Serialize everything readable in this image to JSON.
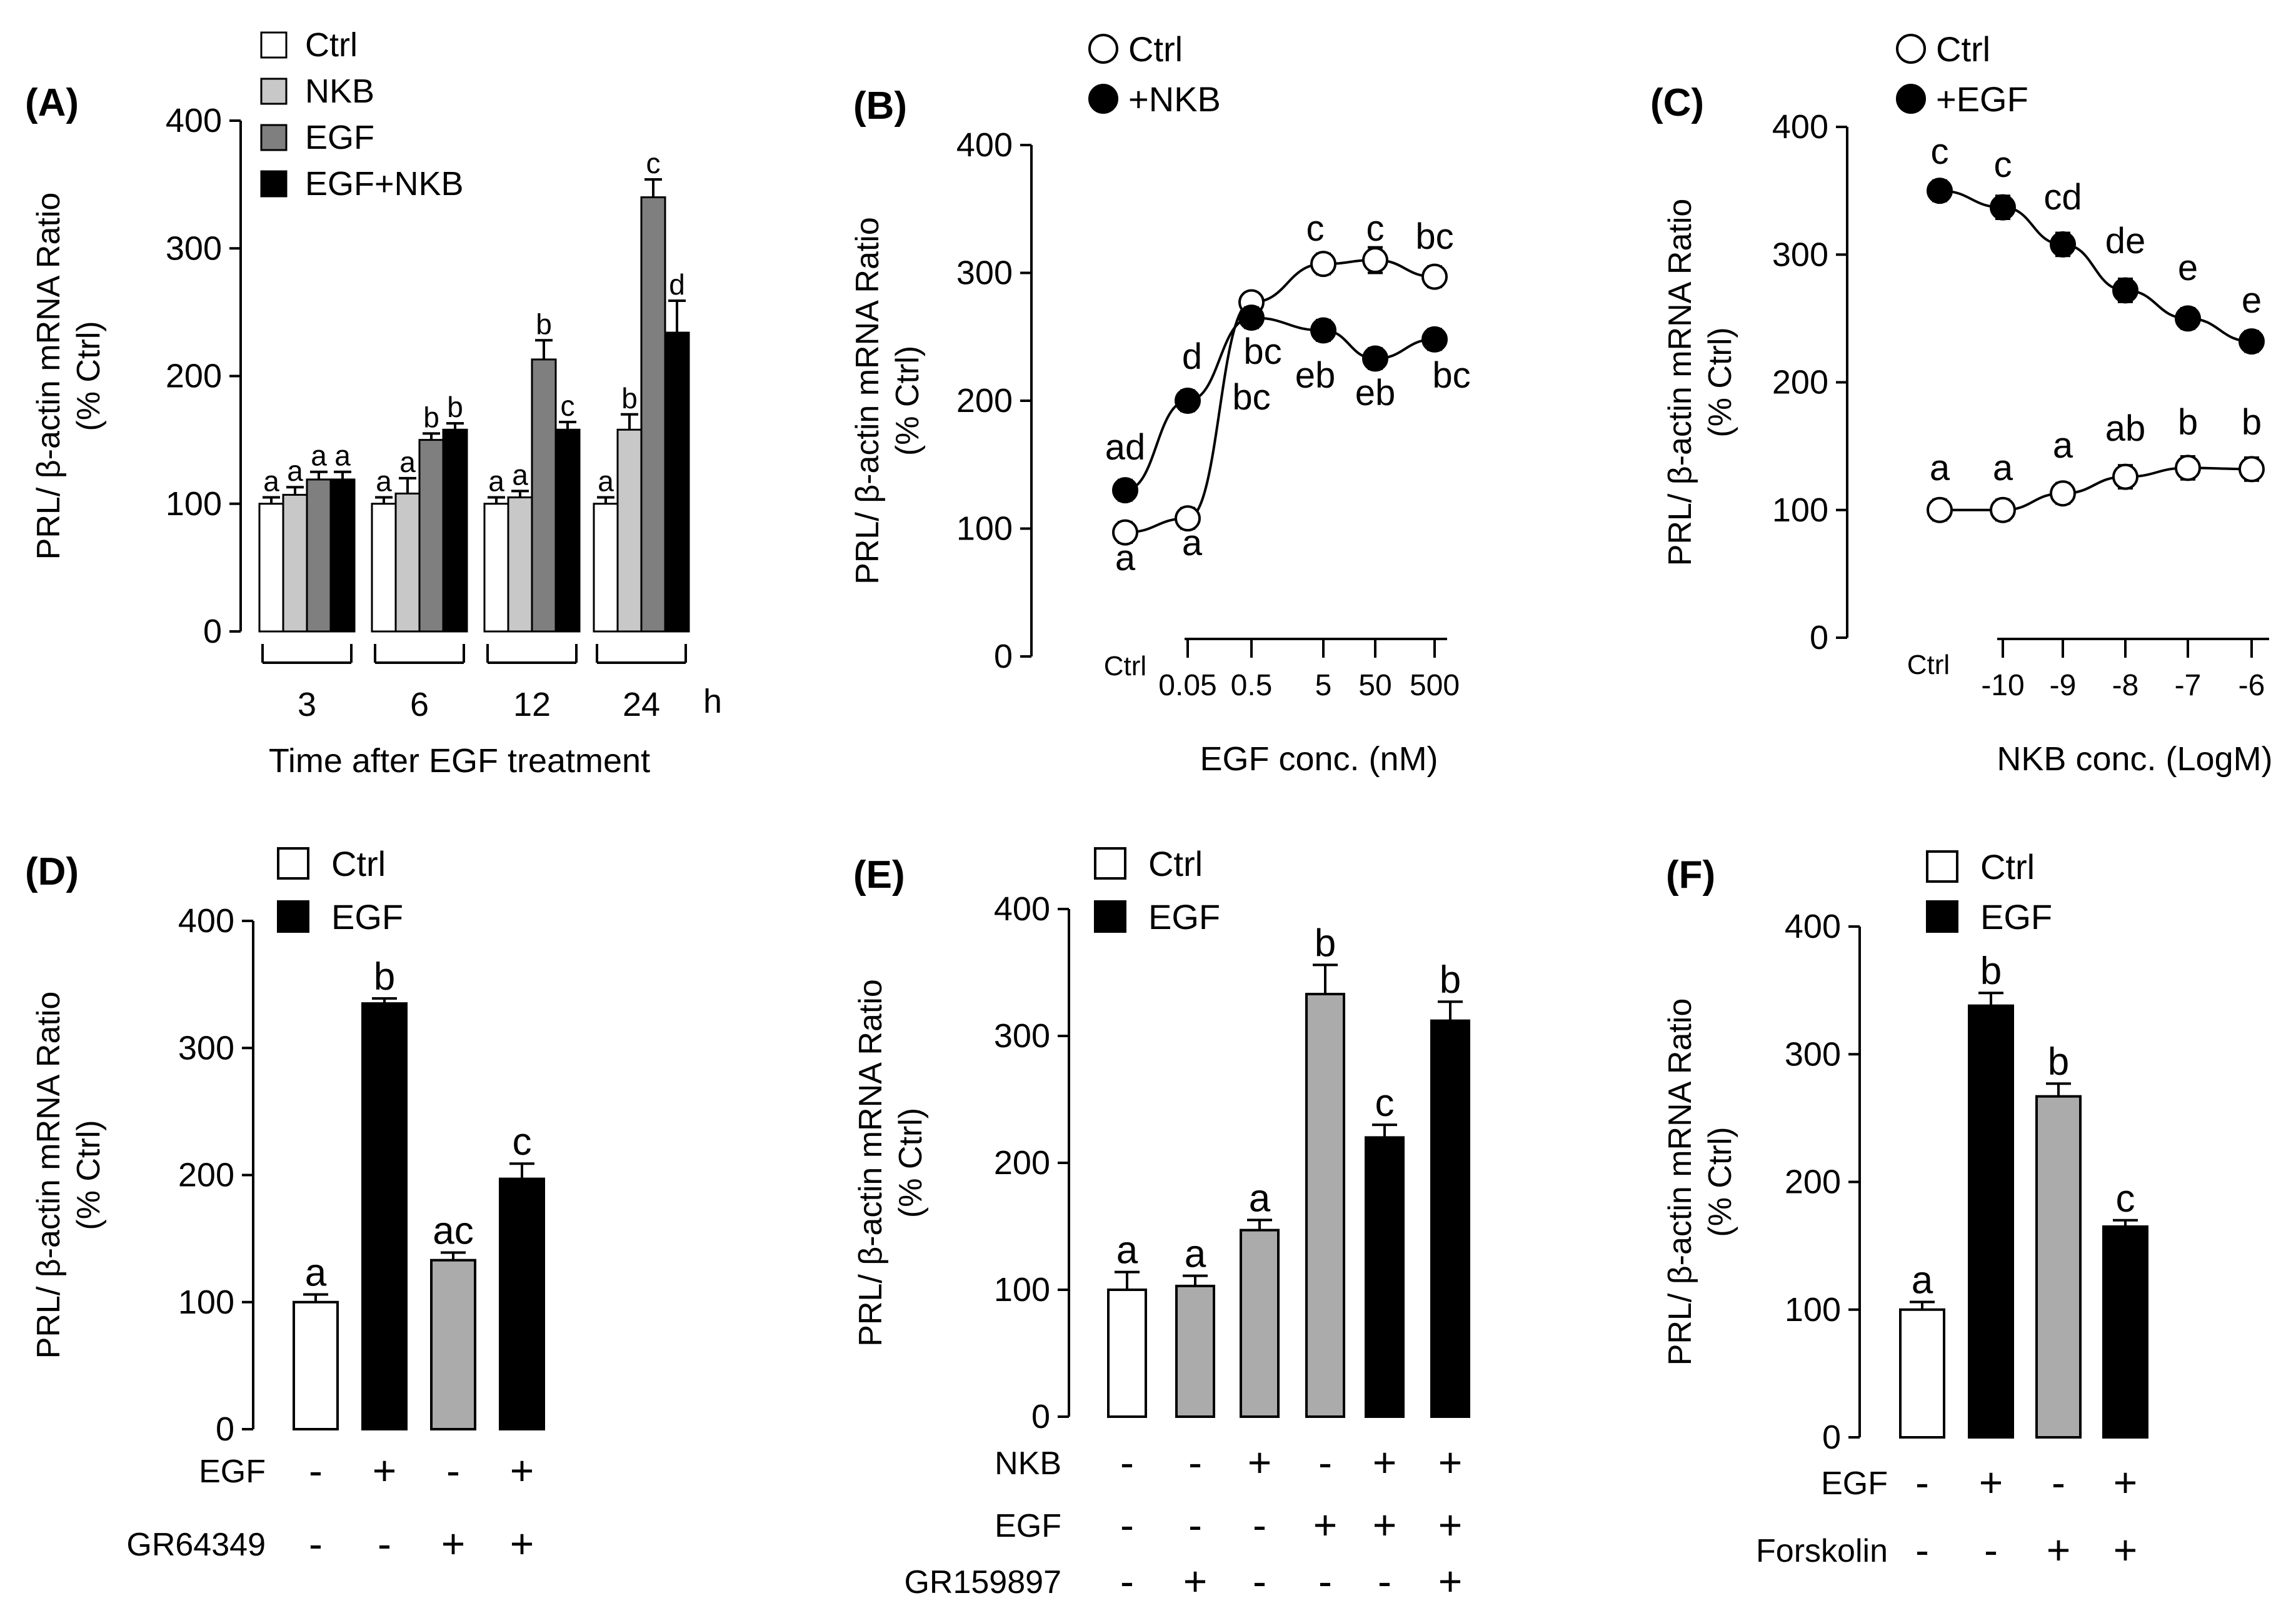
{
  "colors": {
    "ctrl": "#ffffff",
    "nkb": "#c8c8c8",
    "egf": "#7f7f7f",
    "egfnkb": "#000000",
    "gray": "#ababab",
    "black": "#000000"
  },
  "chart_data": [
    {
      "type": "bar",
      "panel": "(A)",
      "ylabel": [
        "PRL/ β-actin mRNA Ratio",
        "(% Ctrl)"
      ],
      "ylim": [
        0,
        400
      ],
      "yticks": [
        "0",
        "100",
        "200",
        "300",
        "400"
      ],
      "xlabel": "Time after EGF treatment",
      "x_unit": "h",
      "categories": [
        "3",
        "6",
        "12",
        "24"
      ],
      "legend": [
        "Ctrl",
        "NKB",
        "EGF",
        "EGF+NKB"
      ],
      "series": [
        {
          "name": "Ctrl",
          "color_key": "ctrl",
          "values": [
            100,
            100,
            100,
            100
          ],
          "errors": [
            5,
            5,
            5,
            5
          ],
          "letters": [
            "a",
            "a",
            "a",
            "a"
          ]
        },
        {
          "name": "NKB",
          "color_key": "nkb",
          "values": [
            107,
            108,
            105,
            158
          ],
          "errors": [
            6,
            12,
            5,
            12
          ],
          "letters": [
            "a",
            "a",
            "a",
            "b"
          ]
        },
        {
          "name": "EGF",
          "color_key": "egf",
          "values": [
            119,
            150,
            213,
            340
          ],
          "errors": [
            6,
            5,
            15,
            14
          ],
          "letters": [
            "a",
            "b",
            "b",
            "c"
          ]
        },
        {
          "name": "EGF+NKB",
          "color_key": "egfnkb",
          "values": [
            119,
            158,
            158,
            234
          ],
          "errors": [
            6,
            5,
            6,
            25
          ],
          "letters": [
            "a",
            "b",
            "c",
            "d"
          ]
        }
      ]
    },
    {
      "type": "line",
      "panel": "(B)",
      "ylabel": [
        "PRL/ β-actin mRNA Ratio",
        "(% Ctrl)"
      ],
      "ylim": [
        0,
        400
      ],
      "yticks": [
        "0",
        "100",
        "200",
        "300",
        "400"
      ],
      "xlabel": "EGF conc. (nM)",
      "x": [
        "Ctrl",
        "0.05",
        "0.5",
        "5",
        "50",
        "500"
      ],
      "legend": [
        "Ctrl",
        "+NKB"
      ],
      "series": [
        {
          "name": "Ctrl",
          "filled": false,
          "values": [
            97,
            108,
            277,
            307,
            310,
            297
          ],
          "errors": [
            8,
            8,
            6,
            8,
            10,
            8
          ],
          "letters": [
            "a",
            "a",
            "bc",
            "c",
            "c",
            "bc"
          ]
        },
        {
          "name": "+NKB",
          "filled": true,
          "values": [
            130,
            200,
            265,
            255,
            233,
            248
          ],
          "errors": [
            8,
            8,
            8,
            8,
            8,
            8
          ],
          "letters": [
            "ad",
            "d",
            "bc",
            "eb",
            "eb",
            "bc"
          ]
        }
      ]
    },
    {
      "type": "line",
      "panel": "(C)",
      "ylabel": [
        "PRL/ β-actin mRNA Ratio",
        "(% Ctrl)"
      ],
      "ylim": [
        0,
        400
      ],
      "yticks": [
        "0",
        "100",
        "200",
        "300",
        "400"
      ],
      "xlabel": "NKB conc. (LogM)",
      "x": [
        "Ctrl",
        "-10",
        "-9",
        "-8",
        "-7",
        "-6"
      ],
      "legend": [
        "Ctrl",
        "+EGF"
      ],
      "series": [
        {
          "name": "Ctrl",
          "filled": false,
          "values": [
            100,
            100,
            113,
            126,
            133,
            132
          ],
          "errors": [
            8,
            8,
            8,
            9,
            9,
            9
          ],
          "letters": [
            "a",
            "a",
            "a",
            "ab",
            "b",
            "b"
          ]
        },
        {
          "name": "+EGF",
          "filled": true,
          "values": [
            350,
            337,
            308,
            272,
            250,
            232
          ],
          "errors": [
            8,
            9,
            9,
            9,
            8,
            8
          ],
          "letters": [
            "c",
            "c",
            "cd",
            "de",
            "e",
            "e"
          ]
        }
      ]
    },
    {
      "type": "bar",
      "panel": "(D)",
      "ylabel": [
        "PRL/ β-actin mRNA Ratio",
        "(% Ctrl)"
      ],
      "ylim": [
        0,
        400
      ],
      "yticks": [
        "0",
        "100",
        "200",
        "300",
        "400"
      ],
      "legend": [
        "Ctrl",
        "EGF"
      ],
      "values": [
        100,
        335,
        133,
        197
      ],
      "errors": [
        6,
        4,
        6,
        12
      ],
      "letters": [
        "a",
        "b",
        "ac",
        "c"
      ],
      "color_keys": [
        "ctrl",
        "black",
        "gray",
        "black"
      ],
      "treatments": [
        {
          "name": "EGF",
          "signs": [
            "-",
            "+",
            "-",
            "+"
          ]
        },
        {
          "name": "GR64349",
          "signs": [
            "-",
            "-",
            "+",
            "+"
          ]
        }
      ]
    },
    {
      "type": "bar",
      "panel": "(E)",
      "ylabel": [
        "PRL/ β-actin mRNA Ratio",
        "(% Ctrl)"
      ],
      "ylim": [
        0,
        400
      ],
      "yticks": [
        "0",
        "100",
        "200",
        "300",
        "400"
      ],
      "legend": [
        "Ctrl",
        "EGF"
      ],
      "values": [
        100,
        103,
        147,
        333,
        220,
        312
      ],
      "errors": [
        14,
        8,
        8,
        23,
        10,
        15
      ],
      "letters": [
        "a",
        "a",
        "a",
        "b",
        "c",
        "b"
      ],
      "color_keys": [
        "ctrl",
        "gray",
        "gray",
        "gray",
        "black",
        "black"
      ],
      "treatments": [
        {
          "name": "NKB",
          "signs": [
            "-",
            "-",
            "+",
            "-",
            "+",
            "+"
          ]
        },
        {
          "name": "EGF",
          "signs": [
            "-",
            "-",
            "-",
            "+",
            "+",
            "+"
          ]
        },
        {
          "name": "GR159897",
          "signs": [
            "-",
            "+",
            "-",
            "-",
            "-",
            "+"
          ]
        }
      ]
    },
    {
      "type": "bar",
      "panel": "(F)",
      "ylabel": [
        "PRL/ β-actin mRNA Ratio",
        "(% Ctrl)"
      ],
      "ylim": [
        0,
        400
      ],
      "yticks": [
        "0",
        "100",
        "200",
        "300",
        "400"
      ],
      "legend": [
        "Ctrl",
        "EGF"
      ],
      "values": [
        100,
        338,
        267,
        165
      ],
      "errors": [
        6,
        10,
        10,
        5
      ],
      "letters": [
        "a",
        "b",
        "b",
        "c"
      ],
      "color_keys": [
        "ctrl",
        "black",
        "gray",
        "black"
      ],
      "treatments": [
        {
          "name": "EGF",
          "signs": [
            "-",
            "+",
            "-",
            "+"
          ]
        },
        {
          "name": "Forskolin",
          "signs": [
            "-",
            "-",
            "+",
            "+"
          ]
        }
      ]
    }
  ]
}
